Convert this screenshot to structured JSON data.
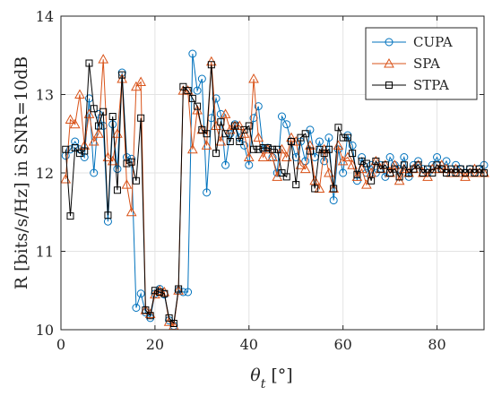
{
  "chart_data": {
    "type": "line",
    "xlabel": "θt [°]",
    "ylabel": "R [bits/s/Hz] in SNR=10dB",
    "xlim": [
      0,
      90
    ],
    "ylim": [
      10,
      14
    ],
    "xticks": [
      0,
      20,
      40,
      60,
      80
    ],
    "yticks": [
      10,
      11,
      12,
      13,
      14
    ],
    "xtick_labels": [
      "0",
      "20",
      "40",
      "60",
      "80"
    ],
    "ytick_labels": [
      "10",
      "11",
      "12",
      "13",
      "14"
    ],
    "grid": true,
    "legend_position": "top-right",
    "x": [
      1,
      2,
      3,
      4,
      5,
      6,
      7,
      8,
      9,
      10,
      11,
      12,
      13,
      14,
      15,
      16,
      17,
      18,
      19,
      20,
      21,
      22,
      23,
      24,
      25,
      26,
      27,
      28,
      29,
      30,
      31,
      32,
      33,
      34,
      35,
      36,
      37,
      38,
      39,
      40,
      41,
      42,
      43,
      44,
      45,
      46,
      47,
      48,
      49,
      50,
      51,
      52,
      53,
      54,
      55,
      56,
      57,
      58,
      59,
      60,
      61,
      62,
      63,
      64,
      65,
      66,
      67,
      68,
      69,
      70,
      71,
      72,
      73,
      74,
      75,
      76,
      77,
      78,
      79,
      80,
      81,
      82,
      83,
      84,
      85,
      86,
      87,
      88,
      89,
      90
    ],
    "series": [
      {
        "name": "CUPA",
        "color": "#0072BD",
        "marker": "circle",
        "values": [
          12.22,
          12.3,
          12.4,
          12.3,
          12.2,
          12.95,
          12.0,
          12.75,
          12.6,
          11.38,
          12.62,
          12.05,
          13.28,
          12.2,
          12.18,
          10.28,
          10.46,
          10.22,
          10.15,
          10.46,
          10.52,
          10.45,
          10.12,
          10.05,
          10.5,
          10.48,
          10.48,
          13.52,
          13.05,
          13.2,
          11.75,
          12.7,
          12.95,
          12.75,
          12.1,
          12.5,
          12.62,
          12.45,
          12.35,
          12.1,
          12.7,
          12.85,
          12.3,
          12.32,
          12.2,
          12.0,
          12.72,
          12.62,
          12.4,
          12.2,
          12.4,
          12.15,
          12.55,
          12.2,
          12.4,
          12.15,
          12.45,
          11.65,
          12.3,
          12.0,
          12.48,
          12.35,
          11.9,
          12.2,
          12.0,
          12.1,
          12.0,
          12.1,
          11.95,
          12.2,
          12.1,
          12.05,
          12.2,
          11.95,
          12.1,
          12.15,
          12.05,
          12.0,
          12.1,
          12.2,
          12.05,
          12.15,
          12.0,
          12.1,
          12.05,
          12.0,
          12.05,
          12.0,
          12.05,
          12.1
        ]
      },
      {
        "name": "SPA",
        "color": "#D95319",
        "marker": "triangle",
        "values": [
          11.92,
          12.68,
          12.62,
          13.0,
          12.35,
          12.75,
          12.4,
          12.5,
          13.45,
          12.2,
          12.15,
          12.5,
          13.2,
          11.85,
          11.5,
          13.1,
          13.16,
          10.25,
          10.2,
          10.45,
          10.5,
          10.48,
          10.1,
          10.05,
          10.5,
          13.05,
          13.05,
          12.3,
          12.8,
          12.55,
          12.35,
          13.42,
          12.6,
          12.4,
          12.75,
          12.55,
          12.6,
          12.6,
          12.5,
          12.2,
          13.2,
          12.45,
          12.2,
          12.3,
          12.2,
          11.95,
          12.3,
          12.2,
          12.45,
          12.4,
          12.1,
          12.05,
          12.35,
          11.9,
          11.8,
          12.3,
          12.0,
          11.8,
          12.35,
          12.15,
          12.2,
          12.1,
          11.95,
          12.05,
          11.85,
          12.0,
          12.15,
          12.05,
          12.1,
          12.0,
          12.1,
          11.9,
          12.05,
          12.0,
          12.05,
          12.1,
          12.0,
          11.95,
          12.05,
          12.05,
          12.1,
          12.05,
          12.0,
          12.05,
          12.0,
          11.95,
          12.0,
          12.05,
          12.0,
          12.0
        ]
      },
      {
        "name": "STPA",
        "color": "#000000",
        "marker": "square",
        "values": [
          12.3,
          11.45,
          12.32,
          12.25,
          12.28,
          13.4,
          12.82,
          12.6,
          12.78,
          11.46,
          12.72,
          11.78,
          13.25,
          12.12,
          12.14,
          11.9,
          12.7,
          10.25,
          10.18,
          10.5,
          10.48,
          10.46,
          10.15,
          10.08,
          10.52,
          13.1,
          13.05,
          12.95,
          12.85,
          12.55,
          12.5,
          13.38,
          12.25,
          12.65,
          12.5,
          12.4,
          12.6,
          12.4,
          12.55,
          12.6,
          12.3,
          12.3,
          12.32,
          12.32,
          12.3,
          12.3,
          12.0,
          11.95,
          12.4,
          11.85,
          12.45,
          12.5,
          12.28,
          11.8,
          12.3,
          12.25,
          12.3,
          11.8,
          12.58,
          12.45,
          12.45,
          12.25,
          11.98,
          12.15,
          12.12,
          11.9,
          12.15,
          12.05,
          12.1,
          12.0,
          12.05,
          11.95,
          12.1,
          12.0,
          12.05,
          12.1,
          12.0,
          12.05,
          12.0,
          12.1,
          12.05,
          12.0,
          12.05,
          12.0,
          12.05,
          12.0,
          12.05,
          12.0,
          12.05,
          12.0
        ]
      }
    ]
  }
}
